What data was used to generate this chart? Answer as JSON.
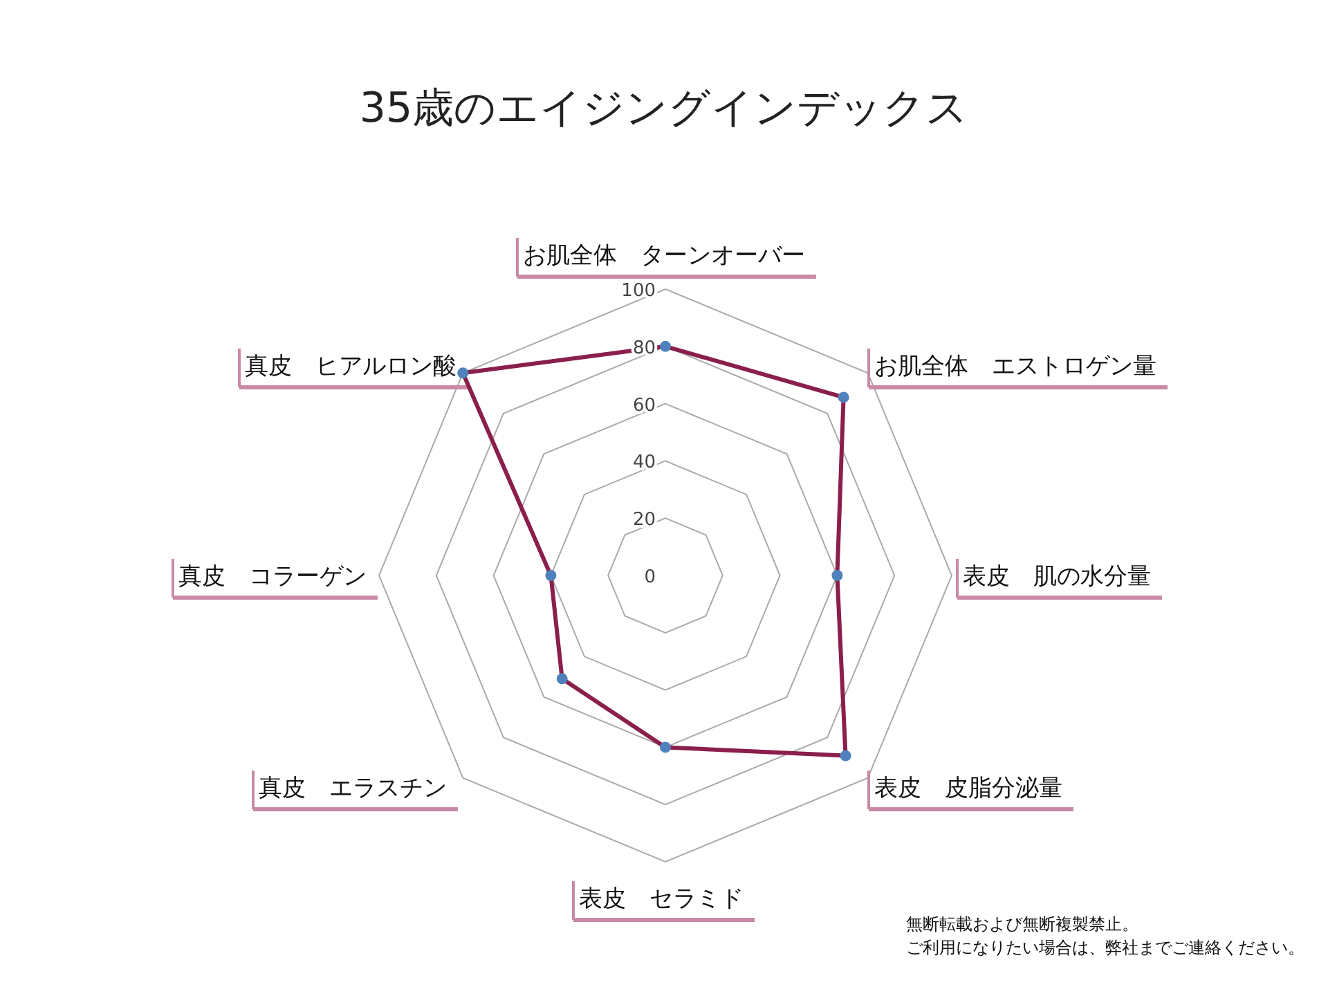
{
  "chart_data": {
    "type": "radar",
    "title": "35歳のエイジングインデックス",
    "categories": [
      "お肌全体　ターンオーバー",
      "お肌全体　エストロゲン量",
      "表皮　肌の水分量",
      "表皮　皮脂分泌量",
      "表皮　セラミド",
      "真皮　エラスチン",
      "真皮　コラーゲン",
      "真皮　ヒアルロン酸"
    ],
    "series": [
      {
        "color": "#8b1f4b",
        "values": [
          80,
          88,
          60,
          89,
          60,
          51,
          40,
          100
        ]
      }
    ],
    "ylim": [
      0,
      100
    ],
    "yticks": [
      0,
      20,
      40,
      60,
      80,
      100
    ],
    "marker": "circle",
    "grid": true,
    "annotations": [
      "無断転載および無断複製禁止。",
      "ご利用になりたい場合は、弊社までご連絡ください。"
    ]
  }
}
